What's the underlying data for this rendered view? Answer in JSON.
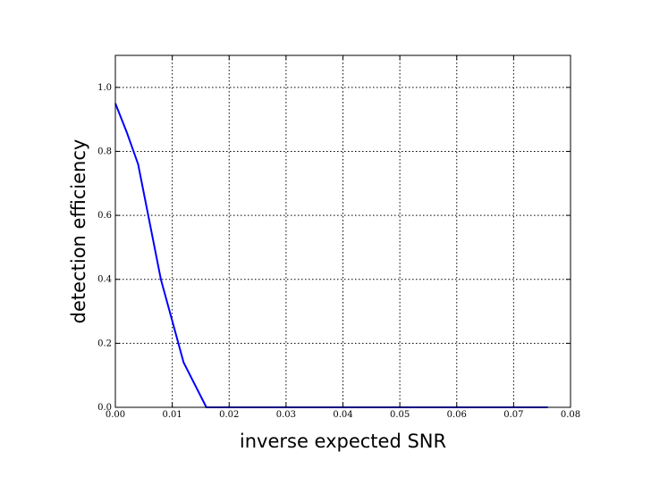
{
  "chart_data": {
    "type": "line",
    "title": "",
    "xlabel": "inverse expected SNR",
    "ylabel": "detection efficiency",
    "xlim": [
      0.0,
      0.08
    ],
    "ylim": [
      0.0,
      1.1
    ],
    "x_ticks": [
      0.0,
      0.01,
      0.02,
      0.03,
      0.04,
      0.05,
      0.06,
      0.07,
      0.08
    ],
    "x_tick_labels": [
      "0.00",
      "0.01",
      "0.02",
      "0.03",
      "0.04",
      "0.05",
      "0.06",
      "0.07",
      "0.08"
    ],
    "y_ticks": [
      0.0,
      0.2,
      0.4,
      0.6,
      0.8,
      1.0
    ],
    "y_tick_labels": [
      "0.0",
      "0.2",
      "0.4",
      "0.6",
      "0.8",
      "1.0"
    ],
    "grid": true,
    "series": [
      {
        "color": "#0000ff",
        "x": [
          0.0,
          0.002,
          0.004,
          0.006,
          0.008,
          0.01,
          0.012,
          0.014,
          0.016,
          0.018,
          0.02,
          0.03,
          0.04,
          0.05,
          0.06,
          0.07,
          0.076
        ],
        "y": [
          0.95,
          0.86,
          0.76,
          0.58,
          0.4,
          0.27,
          0.14,
          0.07,
          0.0,
          0.0,
          0.0,
          0.0,
          0.0,
          0.0,
          0.0,
          0.0,
          0.0
        ]
      }
    ]
  }
}
